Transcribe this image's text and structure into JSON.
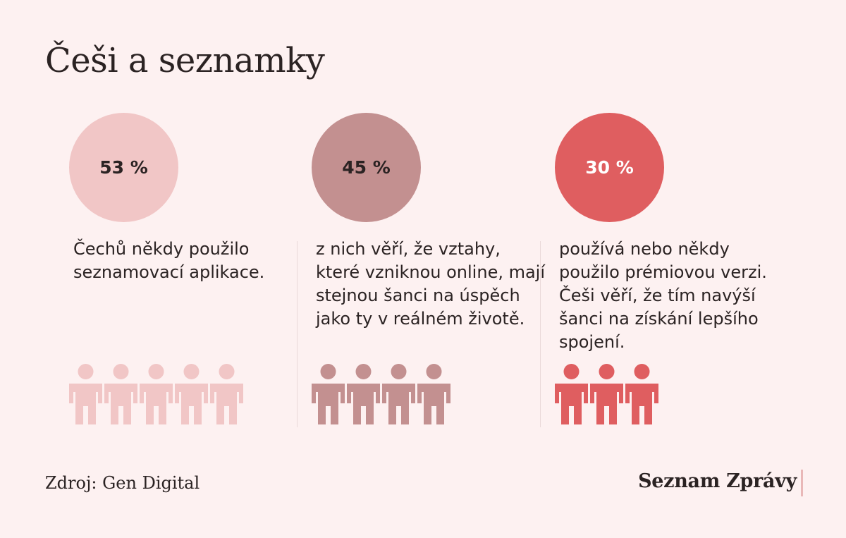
{
  "title": "Češi a seznamky",
  "stats": [
    {
      "value": "53 %",
      "text": "Čechů někdy použilo seznamovací aplikace.",
      "people_icons": 5,
      "color": "#f1c6c6",
      "value_color": "#2b2323"
    },
    {
      "value": "45 %",
      "text": "z nich věří, že vztahy, které vzniknou online, mají stejnou šanci na úspěch jako ty v reálném životě.",
      "people_icons": 4,
      "color": "#c39090",
      "value_color": "#2b2323"
    },
    {
      "value": "30 %",
      "text": "používá nebo někdy použilo prémiovou verzi. Češi věří, že tím navýší šanci na získání lepšího spojení.",
      "people_icons": 3,
      "color": "#df5e60",
      "value_color": "#ffffff"
    }
  ],
  "source": "Zdroj: Gen Digital",
  "brand": "Seznam Zprávy",
  "icons": {
    "person": "person-icon"
  }
}
